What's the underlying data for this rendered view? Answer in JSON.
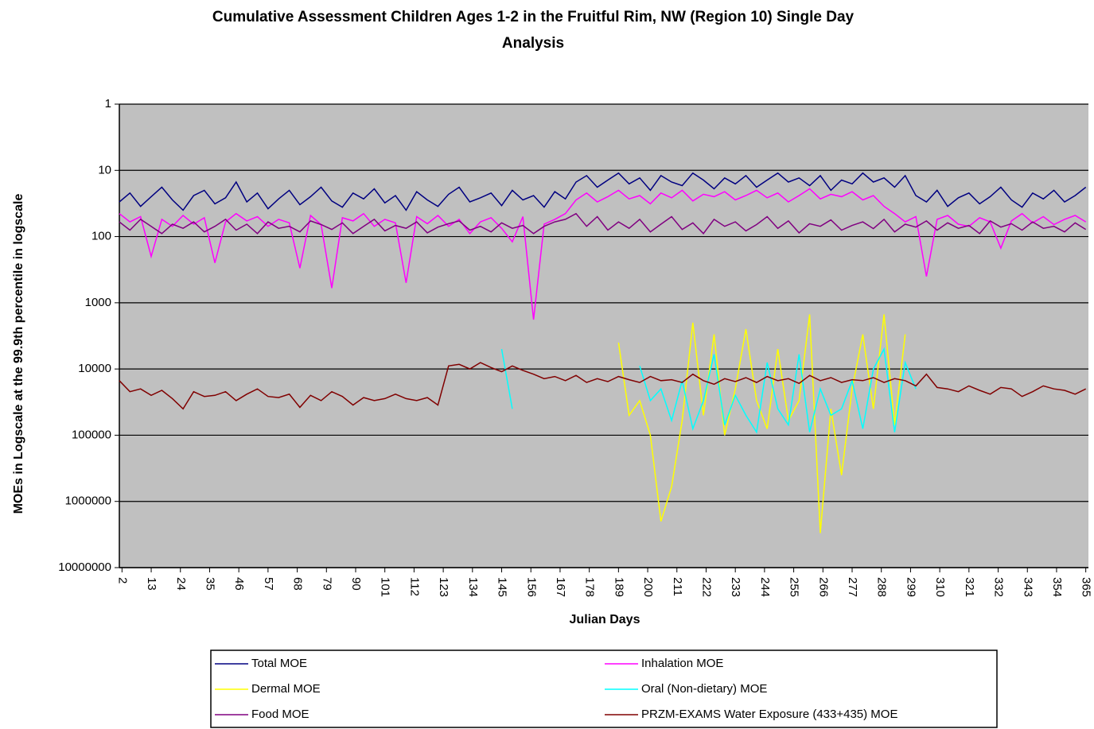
{
  "chart_data": {
    "type": "line",
    "title": "Cumulative Assessment Children Ages 1-2 in the Fruitful Rim, NW (Region 10) Single Day",
    "title_line2": "Analysis",
    "ylabel": "MOEs in Logscale at the 99.9th percentile in logscale",
    "xlabel": "Julian Days",
    "ylog": true,
    "grid": true,
    "background": "#c0c0c0",
    "ylim": [
      10000000,
      1
    ],
    "yticks": [
      1,
      10,
      100,
      1000,
      10000,
      100000,
      1000000,
      10000000
    ],
    "xlim": [
      1,
      366
    ],
    "xticks": [
      2,
      13,
      24,
      35,
      46,
      57,
      68,
      79,
      90,
      101,
      112,
      123,
      134,
      145,
      156,
      167,
      178,
      189,
      200,
      211,
      222,
      233,
      244,
      255,
      266,
      277,
      288,
      299,
      310,
      321,
      332,
      343,
      354,
      365
    ],
    "x": [
      1,
      5,
      9,
      13,
      17,
      21,
      25,
      29,
      33,
      37,
      41,
      45,
      49,
      53,
      57,
      61,
      65,
      69,
      73,
      77,
      81,
      85,
      89,
      93,
      97,
      101,
      105,
      109,
      113,
      117,
      121,
      125,
      129,
      133,
      137,
      141,
      145,
      149,
      153,
      157,
      161,
      165,
      169,
      173,
      177,
      181,
      185,
      189,
      193,
      197,
      201,
      205,
      209,
      213,
      217,
      221,
      225,
      229,
      233,
      237,
      241,
      245,
      249,
      253,
      257,
      261,
      265,
      269,
      273,
      277,
      281,
      285,
      289,
      293,
      297,
      301,
      305,
      309,
      313,
      317,
      321,
      325,
      329,
      333,
      337,
      341,
      345,
      349,
      353,
      357,
      361,
      365
    ],
    "series": [
      {
        "name": "Total MOE",
        "color": "#000080",
        "values": [
          30,
          22,
          35,
          25,
          18,
          28,
          40,
          24,
          20,
          32,
          26,
          15,
          30,
          22,
          38,
          27,
          20,
          33,
          25,
          18,
          29,
          36,
          22,
          27,
          19,
          31,
          24,
          40,
          21,
          28,
          35,
          23,
          18,
          30,
          26,
          22,
          34,
          20,
          28,
          24,
          36,
          21,
          27,
          15,
          12,
          18,
          14,
          11,
          16,
          13,
          20,
          12,
          15,
          17,
          11,
          14,
          19,
          13,
          16,
          12,
          18,
          14,
          11,
          15,
          13,
          17,
          12,
          20,
          14,
          16,
          11,
          15,
          13,
          18,
          12,
          24,
          30,
          20,
          35,
          26,
          22,
          32,
          25,
          18,
          28,
          36,
          22,
          27,
          20,
          30,
          24,
          18
        ]
      },
      {
        "name": "Inhalation MOE",
        "color": "#ff00ff",
        "values": [
          45,
          60,
          50,
          200,
          55,
          70,
          48,
          65,
          52,
          250,
          60,
          45,
          58,
          50,
          70,
          55,
          62,
          300,
          48,
          66,
          600,
          52,
          58,
          45,
          70,
          55,
          62,
          500,
          50,
          64,
          48,
          70,
          55,
          90,
          60,
          52,
          75,
          120,
          50,
          1800,
          65,
          55,
          45,
          28,
          22,
          30,
          25,
          20,
          27,
          24,
          32,
          22,
          26,
          20,
          29,
          23,
          25,
          21,
          28,
          24,
          20,
          26,
          22,
          30,
          24,
          19,
          27,
          23,
          25,
          21,
          28,
          24,
          35,
          45,
          60,
          50,
          400,
          55,
          48,
          65,
          70,
          52,
          60,
          150,
          58,
          45,
          62,
          50,
          66,
          55,
          48,
          60
        ]
      },
      {
        "name": "Dermal MOE",
        "color": "#ffff00",
        "values": [
          null,
          null,
          null,
          null,
          null,
          null,
          null,
          null,
          null,
          null,
          null,
          null,
          null,
          null,
          null,
          null,
          null,
          null,
          null,
          null,
          null,
          null,
          null,
          null,
          null,
          null,
          null,
          null,
          null,
          null,
          null,
          null,
          null,
          null,
          null,
          null,
          null,
          null,
          null,
          null,
          null,
          null,
          null,
          null,
          null,
          null,
          null,
          4000,
          50000,
          30000,
          100000,
          2000000,
          600000,
          60000,
          2000,
          50000,
          3000,
          100000,
          20000,
          2500,
          30000,
          80000,
          5000,
          60000,
          30000,
          1500,
          3000000,
          40000,
          400000,
          20000,
          3000,
          40000,
          1500,
          70000,
          3000,
          null,
          null,
          null,
          null,
          null,
          null,
          null,
          null,
          null,
          null,
          null,
          null,
          null,
          null,
          null,
          null,
          null
        ]
      },
      {
        "name": "Oral (Non-dietary) MOE",
        "color": "#00ffff",
        "values": [
          null,
          null,
          null,
          null,
          null,
          null,
          null,
          null,
          null,
          null,
          null,
          null,
          null,
          null,
          null,
          null,
          null,
          null,
          null,
          null,
          null,
          null,
          null,
          null,
          null,
          null,
          null,
          null,
          null,
          null,
          null,
          null,
          null,
          null,
          null,
          null,
          5000,
          40000,
          null,
          null,
          null,
          null,
          null,
          null,
          null,
          null,
          null,
          null,
          null,
          9000,
          30000,
          20000,
          60000,
          15000,
          80000,
          30000,
          6000,
          70000,
          25000,
          50000,
          90000,
          8000,
          40000,
          70000,
          6000,
          90000,
          20000,
          50000,
          40000,
          15000,
          80000,
          10000,
          5000,
          90000,
          8000,
          20000,
          null,
          null,
          null,
          null,
          null,
          null,
          null,
          null,
          null,
          null,
          null,
          null,
          null,
          null,
          null,
          null
        ]
      },
      {
        "name": "Food MOE",
        "color": "#800080",
        "values": [
          60,
          80,
          55,
          70,
          90,
          65,
          75,
          60,
          85,
          70,
          55,
          80,
          65,
          90,
          60,
          75,
          70,
          85,
          58,
          66,
          78,
          62,
          90,
          70,
          55,
          82,
          68,
          75,
          60,
          88,
          72,
          64,
          58,
          80,
          70,
          85,
          62,
          75,
          68,
          90,
          70,
          60,
          55,
          45,
          70,
          50,
          80,
          60,
          75,
          55,
          85,
          65,
          50,
          78,
          62,
          90,
          55,
          70,
          60,
          82,
          66,
          50,
          75,
          58,
          88,
          64,
          70,
          56,
          80,
          68,
          60,
          76,
          55,
          85,
          65,
          72,
          58,
          80,
          62,
          75,
          68,
          90,
          58,
          72,
          64,
          80,
          60,
          75,
          70,
          85,
          62,
          78
        ]
      },
      {
        "name": "PRZM-EXAMS Water Exposure (433+435) MOE",
        "color": "#800000",
        "values": [
          15000,
          22000,
          20000,
          25000,
          21000,
          28000,
          40000,
          22000,
          26000,
          25000,
          22000,
          30000,
          24000,
          20000,
          26000,
          27000,
          24000,
          38000,
          25000,
          30000,
          22000,
          26000,
          35000,
          27000,
          30000,
          28000,
          24000,
          28000,
          30000,
          27000,
          35000,
          9000,
          8500,
          10000,
          8000,
          9500,
          11000,
          9000,
          10500,
          12000,
          14000,
          13000,
          15000,
          12500,
          16000,
          14000,
          15500,
          13000,
          14500,
          16000,
          13000,
          15000,
          14500,
          16000,
          12000,
          15000,
          17000,
          14000,
          15500,
          13500,
          16000,
          13000,
          15000,
          14000,
          16500,
          12500,
          15000,
          13500,
          16000,
          14500,
          15000,
          13500,
          16000,
          14000,
          15000,
          18000,
          12000,
          19000,
          20000,
          22000,
          18000,
          21000,
          24000,
          19000,
          20000,
          26000,
          22000,
          18000,
          20000,
          21000,
          24000,
          20000
        ]
      }
    ]
  }
}
